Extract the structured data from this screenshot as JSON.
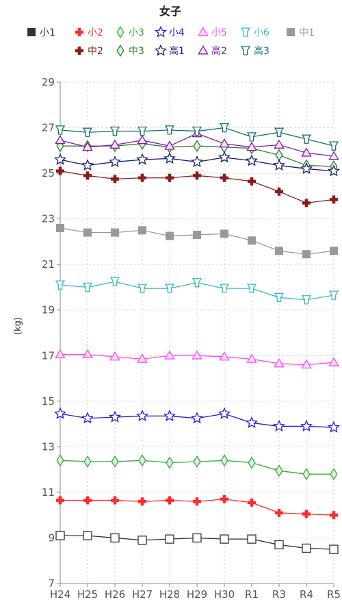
{
  "chart_data": {
    "type": "line",
    "title": "女子",
    "ylabel": "(kg)",
    "xlabel": "",
    "ylim": [
      7,
      29
    ],
    "yticks": [
      7,
      9,
      11,
      13,
      15,
      17,
      19,
      21,
      23,
      25,
      27,
      29
    ],
    "grid": true,
    "legend_position": "top",
    "categories": [
      "H24",
      "H25",
      "H26",
      "H27",
      "H28",
      "H29",
      "H30",
      "R1",
      "R3",
      "R4",
      "R5"
    ],
    "series": [
      {
        "name": "小1",
        "color": "#333333",
        "marker": "square-open",
        "values": [
          9.1,
          9.1,
          9.0,
          8.9,
          8.95,
          9.0,
          8.95,
          8.95,
          8.7,
          8.55,
          8.5
        ]
      },
      {
        "name": "小2",
        "color": "#ff2a2a",
        "marker": "plus",
        "values": [
          10.65,
          10.65,
          10.65,
          10.6,
          10.65,
          10.6,
          10.7,
          10.55,
          10.1,
          10.05,
          10.0
        ]
      },
      {
        "name": "小3",
        "color": "#33aa33",
        "marker": "diamond",
        "values": [
          12.4,
          12.35,
          12.35,
          12.4,
          12.3,
          12.35,
          12.4,
          12.3,
          11.95,
          11.8,
          11.8
        ]
      },
      {
        "name": "小4",
        "color": "#1a1aee",
        "marker": "star",
        "values": [
          14.45,
          14.25,
          14.3,
          14.35,
          14.35,
          14.25,
          14.45,
          14.05,
          13.9,
          13.9,
          13.85
        ]
      },
      {
        "name": "小5",
        "color": "#ff44ff",
        "marker": "triangle",
        "values": [
          17.05,
          17.05,
          16.95,
          16.85,
          17.0,
          17.0,
          16.95,
          16.85,
          16.65,
          16.6,
          16.7
        ]
      },
      {
        "name": "小6",
        "color": "#33bbbb",
        "marker": "y-shape",
        "values": [
          20.1,
          20.0,
          20.25,
          19.95,
          19.95,
          20.2,
          19.95,
          19.95,
          19.55,
          19.45,
          19.65
        ]
      },
      {
        "name": "中1",
        "color": "#999999",
        "marker": "square",
        "values": [
          22.6,
          22.4,
          22.4,
          22.5,
          22.25,
          22.3,
          22.35,
          22.05,
          21.6,
          21.45,
          21.6
        ]
      },
      {
        "name": "中2",
        "color": "#8b1a1a",
        "marker": "plus",
        "values": [
          25.1,
          24.9,
          24.75,
          24.8,
          24.8,
          24.9,
          24.8,
          24.65,
          24.2,
          23.7,
          23.85
        ]
      },
      {
        "name": "中3",
        "color": "#2e7d32",
        "marker": "diamond",
        "values": [
          26.2,
          26.2,
          26.2,
          26.3,
          26.15,
          26.2,
          26.15,
          26.1,
          25.8,
          25.35,
          25.3
        ]
      },
      {
        "name": "高1",
        "color": "#1a1a7a",
        "marker": "star",
        "values": [
          25.6,
          25.35,
          25.5,
          25.6,
          25.65,
          25.5,
          25.7,
          25.55,
          25.35,
          25.2,
          25.1
        ]
      },
      {
        "name": "高2",
        "color": "#7b1fa2",
        "marker": "triangle",
        "values": [
          26.45,
          26.15,
          26.25,
          26.45,
          26.2,
          26.75,
          26.3,
          26.15,
          26.25,
          25.9,
          25.75
        ]
      },
      {
        "name": "高3",
        "color": "#1a6e6e",
        "marker": "y-shape",
        "values": [
          26.9,
          26.8,
          26.85,
          26.85,
          26.9,
          26.85,
          27.0,
          26.6,
          26.8,
          26.5,
          26.2
        ]
      }
    ]
  }
}
